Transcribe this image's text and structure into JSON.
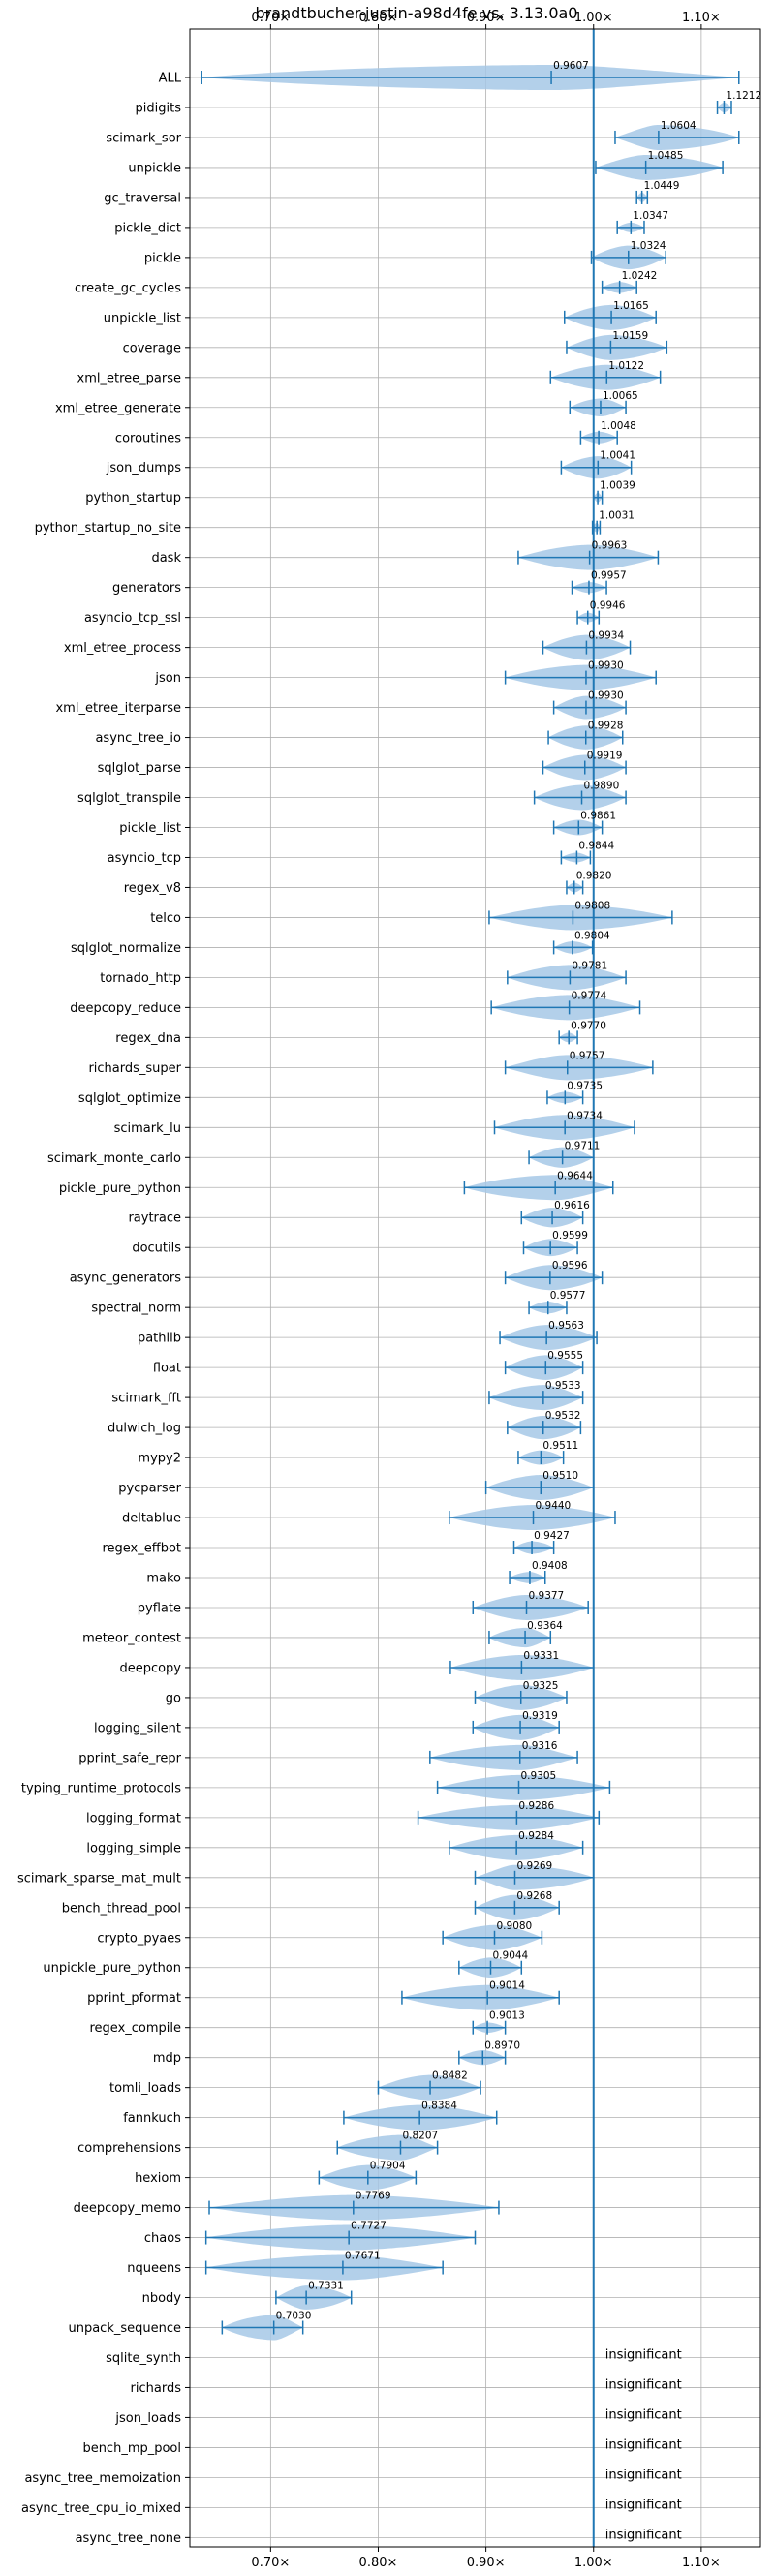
{
  "chart_data": {
    "type": "violin",
    "title": "brandtbucher-justin-a98d4fe vs. 3.13.0a0",
    "x_ticks": [
      0.7,
      0.8,
      0.9,
      1.0,
      1.1
    ],
    "x_tick_labels": [
      "0.70×",
      "0.80×",
      "0.90×",
      "1.00×",
      "1.10×"
    ],
    "xlim": [
      0.625,
      1.155
    ],
    "reference_x": 1.0,
    "grid": true,
    "colors": {
      "violin": "#a6c8e6",
      "line": "#1f77b4",
      "grid": "#b0b0b0"
    },
    "benchmarks": [
      {
        "name": "ALL",
        "mean": 0.9607,
        "min": 0.636,
        "max": 1.135,
        "label": "0.9607"
      },
      {
        "name": "pidigits",
        "mean": 1.1212,
        "min": 1.115,
        "max": 1.128,
        "label": "1.1212"
      },
      {
        "name": "scimark_sor",
        "mean": 1.0604,
        "min": 1.02,
        "max": 1.135,
        "label": "1.0604"
      },
      {
        "name": "unpickle",
        "mean": 1.0485,
        "min": 1.002,
        "max": 1.12,
        "label": "1.0485"
      },
      {
        "name": "gc_traversal",
        "mean": 1.0449,
        "min": 1.04,
        "max": 1.05,
        "label": "1.0449"
      },
      {
        "name": "pickle_dict",
        "mean": 1.0347,
        "min": 1.022,
        "max": 1.047,
        "label": "1.0347"
      },
      {
        "name": "pickle",
        "mean": 1.0324,
        "min": 0.998,
        "max": 1.067,
        "label": "1.0324"
      },
      {
        "name": "create_gc_cycles",
        "mean": 1.0242,
        "min": 1.008,
        "max": 1.04,
        "label": "1.0242"
      },
      {
        "name": "unpickle_list",
        "mean": 1.0165,
        "min": 0.973,
        "max": 1.058,
        "label": "1.0165"
      },
      {
        "name": "coverage",
        "mean": 1.0159,
        "min": 0.975,
        "max": 1.068,
        "label": "1.0159"
      },
      {
        "name": "xml_etree_parse",
        "mean": 1.0122,
        "min": 0.96,
        "max": 1.062,
        "label": "1.0122"
      },
      {
        "name": "xml_etree_generate",
        "mean": 1.0065,
        "min": 0.978,
        "max": 1.03,
        "label": "1.0065"
      },
      {
        "name": "coroutines",
        "mean": 1.0048,
        "min": 0.988,
        "max": 1.022,
        "label": "1.0048"
      },
      {
        "name": "json_dumps",
        "mean": 1.0041,
        "min": 0.97,
        "max": 1.035,
        "label": "1.0041"
      },
      {
        "name": "python_startup",
        "mean": 1.0039,
        "min": 1.0,
        "max": 1.008,
        "label": "1.0039"
      },
      {
        "name": "python_startup_no_site",
        "mean": 1.0031,
        "min": 0.999,
        "max": 1.006,
        "label": "1.0031"
      },
      {
        "name": "dask",
        "mean": 0.9963,
        "min": 0.93,
        "max": 1.06,
        "label": "0.9963"
      },
      {
        "name": "generators",
        "mean": 0.9957,
        "min": 0.98,
        "max": 1.012,
        "label": "0.9957"
      },
      {
        "name": "asyncio_tcp_ssl",
        "mean": 0.9946,
        "min": 0.985,
        "max": 1.005,
        "label": "0.9946"
      },
      {
        "name": "xml_etree_process",
        "mean": 0.9934,
        "min": 0.953,
        "max": 1.034,
        "label": "0.9934"
      },
      {
        "name": "json",
        "mean": 0.993,
        "min": 0.918,
        "max": 1.058,
        "label": "0.9930"
      },
      {
        "name": "xml_etree_iterparse",
        "mean": 0.993,
        "min": 0.963,
        "max": 1.03,
        "label": "0.9930"
      },
      {
        "name": "async_tree_io",
        "mean": 0.9928,
        "min": 0.958,
        "max": 1.027,
        "label": "0.9928"
      },
      {
        "name": "sqlglot_parse",
        "mean": 0.9919,
        "min": 0.953,
        "max": 1.03,
        "label": "0.9919"
      },
      {
        "name": "sqlglot_transpile",
        "mean": 0.989,
        "min": 0.945,
        "max": 1.03,
        "label": "0.9890"
      },
      {
        "name": "pickle_list",
        "mean": 0.9861,
        "min": 0.963,
        "max": 1.008,
        "label": "0.9861"
      },
      {
        "name": "asyncio_tcp",
        "mean": 0.9844,
        "min": 0.97,
        "max": 0.997,
        "label": "0.9844"
      },
      {
        "name": "regex_v8",
        "mean": 0.982,
        "min": 0.975,
        "max": 0.99,
        "label": "0.9820"
      },
      {
        "name": "telco",
        "mean": 0.9808,
        "min": 0.903,
        "max": 1.073,
        "label": "0.9808"
      },
      {
        "name": "sqlglot_normalize",
        "mean": 0.9804,
        "min": 0.963,
        "max": 0.999,
        "label": "0.9804"
      },
      {
        "name": "tornado_http",
        "mean": 0.9781,
        "min": 0.92,
        "max": 1.03,
        "label": "0.9781"
      },
      {
        "name": "deepcopy_reduce",
        "mean": 0.9774,
        "min": 0.905,
        "max": 1.043,
        "label": "0.9774"
      },
      {
        "name": "regex_dna",
        "mean": 0.977,
        "min": 0.968,
        "max": 0.985,
        "label": "0.9770"
      },
      {
        "name": "richards_super",
        "mean": 0.9757,
        "min": 0.918,
        "max": 1.055,
        "label": "0.9757"
      },
      {
        "name": "sqlglot_optimize",
        "mean": 0.9735,
        "min": 0.957,
        "max": 0.99,
        "label": "0.9735"
      },
      {
        "name": "scimark_lu",
        "mean": 0.9734,
        "min": 0.908,
        "max": 1.038,
        "label": "0.9734"
      },
      {
        "name": "scimark_monte_carlo",
        "mean": 0.9711,
        "min": 0.94,
        "max": 1.0,
        "label": "0.9711"
      },
      {
        "name": "pickle_pure_python",
        "mean": 0.9644,
        "min": 0.88,
        "max": 1.018,
        "label": "0.9644"
      },
      {
        "name": "raytrace",
        "mean": 0.9616,
        "min": 0.933,
        "max": 0.99,
        "label": "0.9616"
      },
      {
        "name": "docutils",
        "mean": 0.9599,
        "min": 0.935,
        "max": 0.985,
        "label": "0.9599"
      },
      {
        "name": "async_generators",
        "mean": 0.9596,
        "min": 0.918,
        "max": 1.008,
        "label": "0.9596"
      },
      {
        "name": "spectral_norm",
        "mean": 0.9577,
        "min": 0.94,
        "max": 0.975,
        "label": "0.9577"
      },
      {
        "name": "pathlib",
        "mean": 0.9563,
        "min": 0.913,
        "max": 1.003,
        "label": "0.9563"
      },
      {
        "name": "float",
        "mean": 0.9555,
        "min": 0.918,
        "max": 0.99,
        "label": "0.9555"
      },
      {
        "name": "scimark_fft",
        "mean": 0.9533,
        "min": 0.903,
        "max": 0.99,
        "label": "0.9533"
      },
      {
        "name": "dulwich_log",
        "mean": 0.9532,
        "min": 0.92,
        "max": 0.988,
        "label": "0.9532"
      },
      {
        "name": "mypy2",
        "mean": 0.9511,
        "min": 0.93,
        "max": 0.972,
        "label": "0.9511"
      },
      {
        "name": "pycparser",
        "mean": 0.951,
        "min": 0.9,
        "max": 1.0,
        "label": "0.9510"
      },
      {
        "name": "deltablue",
        "mean": 0.944,
        "min": 0.866,
        "max": 1.02,
        "label": "0.9440"
      },
      {
        "name": "regex_effbot",
        "mean": 0.9427,
        "min": 0.926,
        "max": 0.963,
        "label": "0.9427"
      },
      {
        "name": "mako",
        "mean": 0.9408,
        "min": 0.922,
        "max": 0.955,
        "label": "0.9408"
      },
      {
        "name": "pyflate",
        "mean": 0.9377,
        "min": 0.888,
        "max": 0.995,
        "label": "0.9377"
      },
      {
        "name": "meteor_contest",
        "mean": 0.9364,
        "min": 0.903,
        "max": 0.96,
        "label": "0.9364"
      },
      {
        "name": "deepcopy",
        "mean": 0.9331,
        "min": 0.867,
        "max": 1.0,
        "label": "0.9331"
      },
      {
        "name": "go",
        "mean": 0.9325,
        "min": 0.89,
        "max": 0.975,
        "label": "0.9325"
      },
      {
        "name": "logging_silent",
        "mean": 0.9319,
        "min": 0.888,
        "max": 0.968,
        "label": "0.9319"
      },
      {
        "name": "pprint_safe_repr",
        "mean": 0.9316,
        "min": 0.848,
        "max": 0.985,
        "label": "0.9316"
      },
      {
        "name": "typing_runtime_protocols",
        "mean": 0.9305,
        "min": 0.855,
        "max": 1.015,
        "label": "0.9305"
      },
      {
        "name": "logging_format",
        "mean": 0.9286,
        "min": 0.837,
        "max": 1.005,
        "label": "0.9286"
      },
      {
        "name": "logging_simple",
        "mean": 0.9284,
        "min": 0.866,
        "max": 0.99,
        "label": "0.9284"
      },
      {
        "name": "scimark_sparse_mat_mult",
        "mean": 0.9269,
        "min": 0.89,
        "max": 1.0,
        "label": "0.9269"
      },
      {
        "name": "bench_thread_pool",
        "mean": 0.9268,
        "min": 0.89,
        "max": 0.968,
        "label": "0.9268"
      },
      {
        "name": "crypto_pyaes",
        "mean": 0.908,
        "min": 0.86,
        "max": 0.952,
        "label": "0.9080"
      },
      {
        "name": "unpickle_pure_python",
        "mean": 0.9044,
        "min": 0.875,
        "max": 0.933,
        "label": "0.9044"
      },
      {
        "name": "pprint_pformat",
        "mean": 0.9014,
        "min": 0.822,
        "max": 0.968,
        "label": "0.9014"
      },
      {
        "name": "regex_compile",
        "mean": 0.9013,
        "min": 0.888,
        "max": 0.918,
        "label": "0.9013"
      },
      {
        "name": "mdp",
        "mean": 0.897,
        "min": 0.875,
        "max": 0.918,
        "label": "0.8970"
      },
      {
        "name": "tomli_loads",
        "mean": 0.8482,
        "min": 0.8,
        "max": 0.895,
        "label": "0.8482"
      },
      {
        "name": "fannkuch",
        "mean": 0.8384,
        "min": 0.768,
        "max": 0.91,
        "label": "0.8384"
      },
      {
        "name": "comprehensions",
        "mean": 0.8207,
        "min": 0.762,
        "max": 0.855,
        "label": "0.8207"
      },
      {
        "name": "hexiom",
        "mean": 0.7904,
        "min": 0.745,
        "max": 0.835,
        "label": "0.7904"
      },
      {
        "name": "deepcopy_memo",
        "mean": 0.7769,
        "min": 0.643,
        "max": 0.912,
        "label": "0.7769"
      },
      {
        "name": "chaos",
        "mean": 0.7727,
        "min": 0.64,
        "max": 0.89,
        "label": "0.7727"
      },
      {
        "name": "nqueens",
        "mean": 0.7671,
        "min": 0.64,
        "max": 0.86,
        "label": "0.7671"
      },
      {
        "name": "nbody",
        "mean": 0.7331,
        "min": 0.705,
        "max": 0.775,
        "label": "0.7331"
      },
      {
        "name": "unpack_sequence",
        "mean": 0.703,
        "min": 0.655,
        "max": 0.73,
        "label": "0.7030"
      },
      {
        "name": "sqlite_synth",
        "insignificant": true,
        "label": "insignificant"
      },
      {
        "name": "richards",
        "insignificant": true,
        "label": "insignificant"
      },
      {
        "name": "json_loads",
        "insignificant": true,
        "label": "insignificant"
      },
      {
        "name": "bench_mp_pool",
        "insignificant": true,
        "label": "insignificant"
      },
      {
        "name": "async_tree_memoization",
        "insignificant": true,
        "label": "insignificant"
      },
      {
        "name": "async_tree_cpu_io_mixed",
        "insignificant": true,
        "label": "insignificant"
      },
      {
        "name": "async_tree_none",
        "insignificant": true,
        "label": "insignificant"
      }
    ]
  }
}
